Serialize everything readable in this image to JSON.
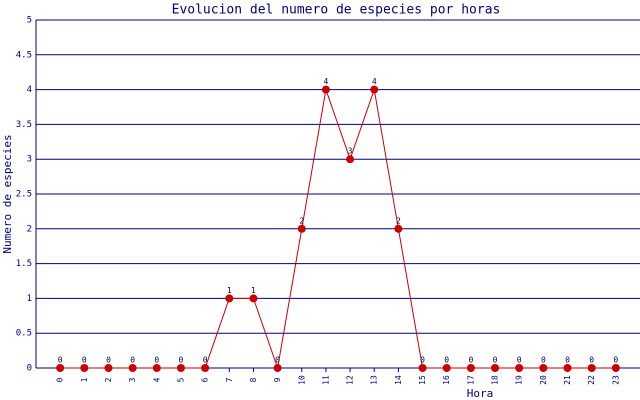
{
  "chart_data": {
    "type": "line",
    "title": "Evolucion del numero de especies por horas",
    "xlabel": "Hora",
    "ylabel": "Numero de especies",
    "categories": [
      "0",
      "1",
      "2",
      "3",
      "4",
      "5",
      "6",
      "7",
      "8",
      "9",
      "10",
      "11",
      "12",
      "13",
      "14",
      "15",
      "16",
      "17",
      "18",
      "19",
      "20",
      "21",
      "22",
      "23"
    ],
    "values": [
      0,
      0,
      0,
      0,
      0,
      0,
      0,
      1,
      1,
      0,
      2,
      4,
      3,
      4,
      2,
      0,
      0,
      0,
      0,
      0,
      0,
      0,
      0,
      0
    ],
    "color": "#cc0000",
    "ylim": [
      0,
      5
    ],
    "yticks": [
      0,
      0.5,
      1,
      1.5,
      2,
      2.5,
      3,
      3.5,
      4,
      4.5,
      5
    ],
    "grid": true
  }
}
